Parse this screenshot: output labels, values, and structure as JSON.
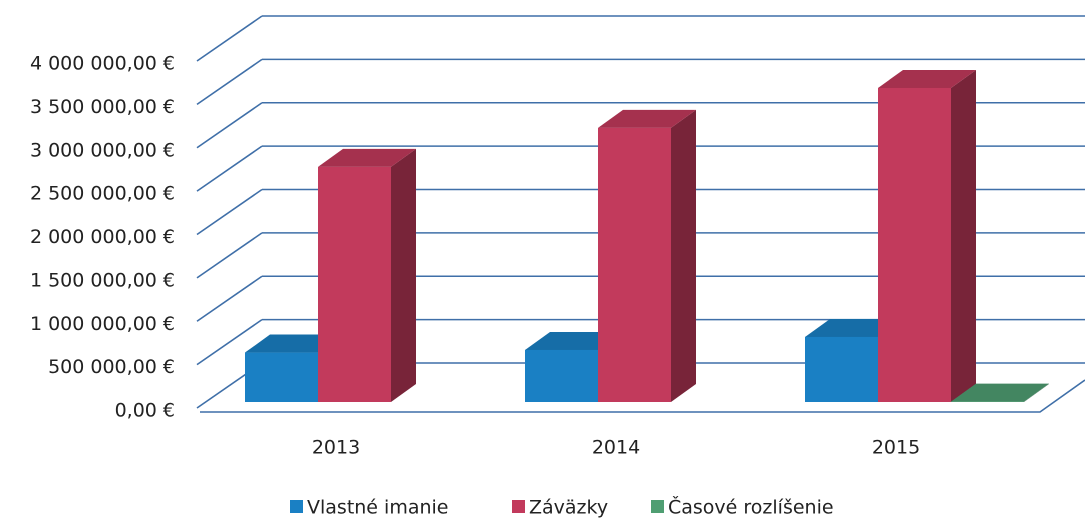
{
  "chart_data": {
    "type": "bar3d",
    "categories": [
      "2013",
      "2014",
      "2015"
    ],
    "series": [
      {
        "name": "Vlastné imanie",
        "color": "#1a80c4",
        "values": [
          570000,
          600000,
          750000
        ]
      },
      {
        "name": "Záväzky",
        "color": "#c23a5c",
        "values": [
          2710000,
          3160000,
          3620000
        ]
      },
      {
        "name": "Časové rozlíšenie",
        "color": "#4f9e72",
        "values": [
          0,
          0,
          5000
        ]
      }
    ],
    "ylim": [
      0,
      4000000
    ],
    "yticks": [
      {
        "value": 0,
        "label": "0,00 €"
      },
      {
        "value": 500000,
        "label": "500 000,00 €"
      },
      {
        "value": 1000000,
        "label": "1 000 000,00 €"
      },
      {
        "value": 1500000,
        "label": "1 500 000,00 €"
      },
      {
        "value": 2000000,
        "label": "2 000 000,00 €"
      },
      {
        "value": 2500000,
        "label": "2 500 000,00 €"
      },
      {
        "value": 3000000,
        "label": "3 000 000,00 €"
      },
      {
        "value": 3500000,
        "label": "3 500 000,00 €"
      },
      {
        "value": 4000000,
        "label": "4 000 000,00 €"
      }
    ],
    "grid": true,
    "legend": "bottom"
  }
}
